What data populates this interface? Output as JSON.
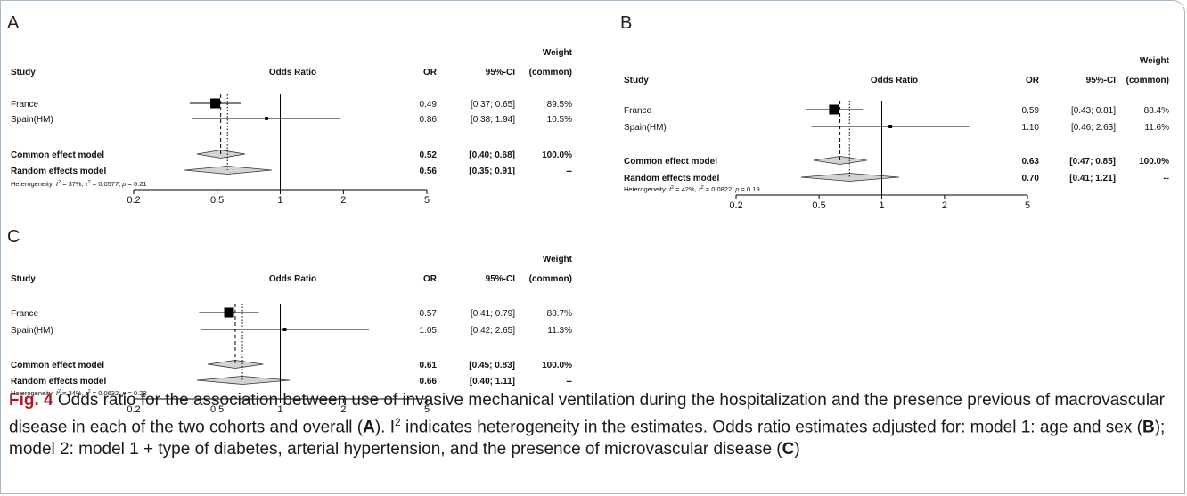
{
  "caption": {
    "fig_label": "Fig. 4",
    "part1": "Odds ratio for the association between use of invasive mechanical ventilation during the hospitalization and the presence previous of macrovascular disease in each of the two cohorts and overall (",
    "ref_a": "A",
    "part2": "). I",
    "sup": "2",
    "part3": " indicates heterogeneity in the estimates. Odds ratio estimates adjusted for: model 1: age and sex (",
    "ref_b": "B",
    "part4": "); model 2: model 1 + type of diabetes, arterial hypertension, and the presence of microvascular disease (",
    "ref_c": "C",
    "part5": ")"
  },
  "chart_data": [
    {
      "type": "forest",
      "panel": "A",
      "header": {
        "study": "Study",
        "or_label": "Odds Ratio",
        "or": "OR",
        "ci": "95%-CI",
        "weight_top": "Weight",
        "weight_bottom": "(common)"
      },
      "studies": [
        {
          "name": "France",
          "or": 0.49,
          "lo": 0.37,
          "hi": 0.65,
          "or_text": "0.49",
          "ci_text": "[0.37; 0.65]",
          "weight_text": "89.5%",
          "weight": 89.5
        },
        {
          "name": "Spain(HM)",
          "or": 0.86,
          "lo": 0.38,
          "hi": 1.94,
          "or_text": "0.86",
          "ci_text": "[0.38; 1.94]",
          "weight_text": "10.5%",
          "weight": 10.5
        }
      ],
      "common": {
        "name": "Common effect model",
        "or": 0.52,
        "lo": 0.4,
        "hi": 0.68,
        "or_text": "0.52",
        "ci_text": "[0.40; 0.68]",
        "weight_text": "100.0%"
      },
      "random": {
        "name": "Random effects model",
        "or": 0.56,
        "lo": 0.35,
        "hi": 0.91,
        "or_text": "0.56",
        "ci_text": "[0.35; 0.91]",
        "weight_text": "--"
      },
      "heterogeneity": {
        "prefix": "Heterogeneity: ",
        "i2": "= 37%,",
        "tau2": "= 0.0577,",
        "p": "= 0.21"
      },
      "x_ticks": [
        "0.2",
        "0.5",
        "1",
        "2",
        "5"
      ],
      "x_tick_values": [
        0.2,
        0.5,
        1,
        2,
        5
      ],
      "xlim": [
        0.2,
        5
      ],
      "scale": "log"
    },
    {
      "type": "forest",
      "panel": "B",
      "header": {
        "study": "Study",
        "or_label": "Odds Ratio",
        "or": "OR",
        "ci": "95%-CI",
        "weight_top": "Weight",
        "weight_bottom": "(common)"
      },
      "studies": [
        {
          "name": "France",
          "or": 0.59,
          "lo": 0.43,
          "hi": 0.81,
          "or_text": "0.59",
          "ci_text": "[0.43; 0.81]",
          "weight_text": "88.4%",
          "weight": 88.4
        },
        {
          "name": "Spain(HM)",
          "or": 1.1,
          "lo": 0.46,
          "hi": 2.63,
          "or_text": "1.10",
          "ci_text": "[0.46; 2.63]",
          "weight_text": "11.6%",
          "weight": 11.6
        }
      ],
      "common": {
        "name": "Common effect model",
        "or": 0.63,
        "lo": 0.47,
        "hi": 0.85,
        "or_text": "0.63",
        "ci_text": "[0.47; 0.85]",
        "weight_text": "100.0%"
      },
      "random": {
        "name": "Random effects model",
        "or": 0.7,
        "lo": 0.41,
        "hi": 1.21,
        "or_text": "0.70",
        "ci_text": "[0.41; 1.21]",
        "weight_text": "--"
      },
      "heterogeneity": {
        "prefix": "Heterogeneity: ",
        "i2": "= 42%,",
        "tau2": "= 0.0822,",
        "p": "= 0.19"
      },
      "x_ticks": [
        "0.2",
        "0.5",
        "1",
        "2",
        "5"
      ],
      "x_tick_values": [
        0.2,
        0.5,
        1,
        2,
        5
      ],
      "xlim": [
        0.2,
        5
      ],
      "scale": "log"
    },
    {
      "type": "forest",
      "panel": "C",
      "header": {
        "study": "Study",
        "or_label": "Odds Ratio",
        "or": "OR",
        "ci": "95%-CI",
        "weight_top": "Weight",
        "weight_bottom": "(common)"
      },
      "studies": [
        {
          "name": "France",
          "or": 0.57,
          "lo": 0.41,
          "hi": 0.79,
          "or_text": "0.57",
          "ci_text": "[0.41; 0.79]",
          "weight_text": "88.7%",
          "weight": 88.7
        },
        {
          "name": "Spain(HM)",
          "or": 1.05,
          "lo": 0.42,
          "hi": 2.65,
          "or_text": "1.05",
          "ci_text": "[0.42; 2.65]",
          "weight_text": "11.3%",
          "weight": 11.3
        }
      ],
      "common": {
        "name": "Common effect model",
        "or": 0.61,
        "lo": 0.45,
        "hi": 0.83,
        "or_text": "0.61",
        "ci_text": "[0.45; 0.83]",
        "weight_text": "100.0%"
      },
      "random": {
        "name": "Random effects model",
        "or": 0.66,
        "lo": 0.4,
        "hi": 1.11,
        "or_text": "0.66",
        "ci_text": "[0.40; 1.11]",
        "weight_text": "--"
      },
      "heterogeneity": {
        "prefix": "Heterogeneity: ",
        "i2": "= 34%,",
        "tau2": "= 0.0632,",
        "p": "= 0.22"
      },
      "x_ticks": [
        "0.2",
        "0.5",
        "1",
        "2",
        "5"
      ],
      "x_tick_values": [
        0.2,
        0.5,
        1,
        2,
        5
      ],
      "xlim": [
        0.2,
        5
      ],
      "scale": "log"
    }
  ]
}
